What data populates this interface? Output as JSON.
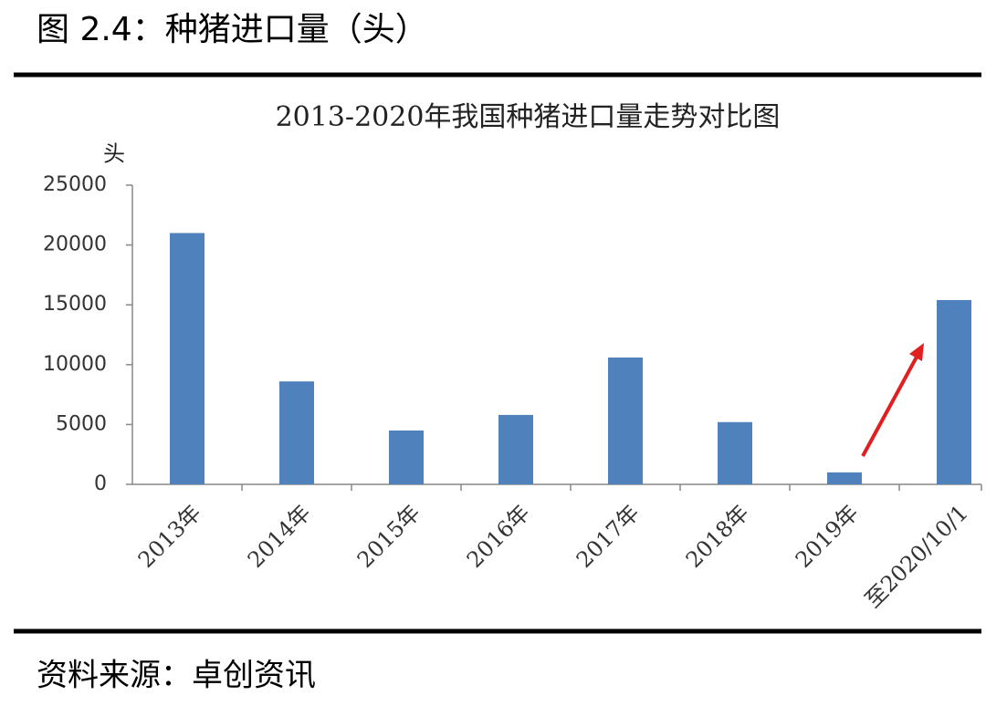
{
  "header": {
    "title": "图 2.4：种猪进口量（头）"
  },
  "chart_data": {
    "type": "bar",
    "title": "2013-2020年我国种猪进口量走势对比图",
    "y_label": "头",
    "categories": [
      "2013年",
      "2014年",
      "2015年",
      "2016年",
      "2017年",
      "2018年",
      "2019年",
      "至2020/10/1"
    ],
    "values": [
      21000,
      8600,
      4500,
      5800,
      10600,
      5200,
      1000,
      15400
    ],
    "color": "#4f81bd",
    "ylim": [
      0,
      25000
    ],
    "yticks": [
      0,
      5000,
      10000,
      15000,
      20000,
      25000
    ],
    "grid": false
  },
  "footer": {
    "source": "资料来源：卓创资讯"
  }
}
